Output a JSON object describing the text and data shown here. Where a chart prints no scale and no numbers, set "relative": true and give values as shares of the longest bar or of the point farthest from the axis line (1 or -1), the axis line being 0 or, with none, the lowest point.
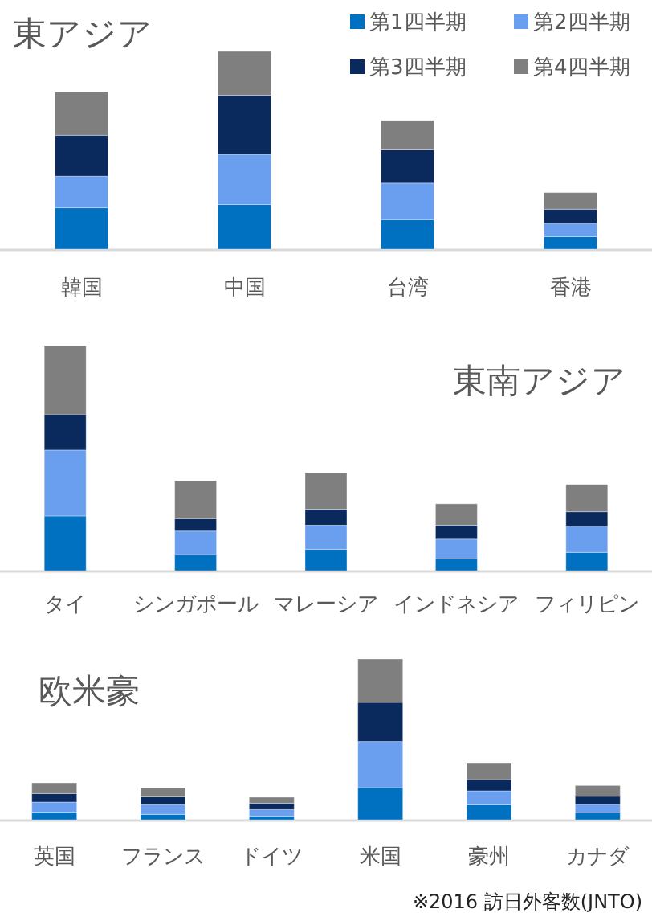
{
  "chart_data": [
    {
      "type": "bar",
      "title": "東アジア",
      "stacked": true,
      "relative": true,
      "legend": "top right",
      "categories": [
        "韓国",
        "中国",
        "台湾",
        "香港"
      ],
      "series": [
        {
          "name": "第1四半期",
          "color": "#0070c0",
          "values": [
            0.209,
            0.226,
            0.149,
            0.063
          ]
        },
        {
          "name": "第2四半期",
          "color": "#6a9ff0",
          "values": [
            0.16,
            0.253,
            0.185,
            0.068
          ]
        },
        {
          "name": "第3四半期",
          "color": "#0a2a5e",
          "values": [
            0.207,
            0.299,
            0.168,
            0.071
          ]
        },
        {
          "name": "第4四半期",
          "color": "#7f7f7f",
          "values": [
            0.22,
            0.222,
            0.149,
            0.084
          ]
        }
      ]
    },
    {
      "type": "bar",
      "title": "東南アジア",
      "stacked": true,
      "relative": true,
      "categories": [
        "タイ",
        "シンガポール",
        "マレーシア",
        "インドネシア",
        "フィリピン"
      ],
      "series": [
        {
          "color": "#0070c0",
          "values": [
            0.243,
            0.071,
            0.095,
            0.052,
            0.081
          ]
        },
        {
          "color": "#6a9ff0",
          "values": [
            0.293,
            0.105,
            0.107,
            0.088,
            0.117
          ]
        },
        {
          "color": "#0a2a5e",
          "values": [
            0.157,
            0.055,
            0.071,
            0.062,
            0.064
          ]
        },
        {
          "color": "#7f7f7f",
          "values": [
            0.307,
            0.169,
            0.162,
            0.095,
            0.121
          ]
        }
      ]
    },
    {
      "type": "bar",
      "title": "欧米豪",
      "stacked": true,
      "relative": true,
      "categories": [
        "英国",
        "フランス",
        "ドイツ",
        "米国",
        "豪州",
        "カナダ"
      ],
      "annotations": [
        "※2016 訪日外客数(JNTO)"
      ],
      "series": [
        {
          "color": "#0070c0",
          "values": [
            0.047,
            0.033,
            0.023,
            0.2,
            0.093,
            0.043
          ]
        },
        {
          "color": "#6a9ff0",
          "values": [
            0.063,
            0.06,
            0.04,
            0.287,
            0.087,
            0.053
          ]
        },
        {
          "color": "#0a2a5e",
          "values": [
            0.053,
            0.05,
            0.04,
            0.243,
            0.07,
            0.05
          ]
        },
        {
          "color": "#7f7f7f",
          "values": [
            0.067,
            0.057,
            0.037,
            0.27,
            0.1,
            0.067
          ]
        }
      ]
    }
  ]
}
